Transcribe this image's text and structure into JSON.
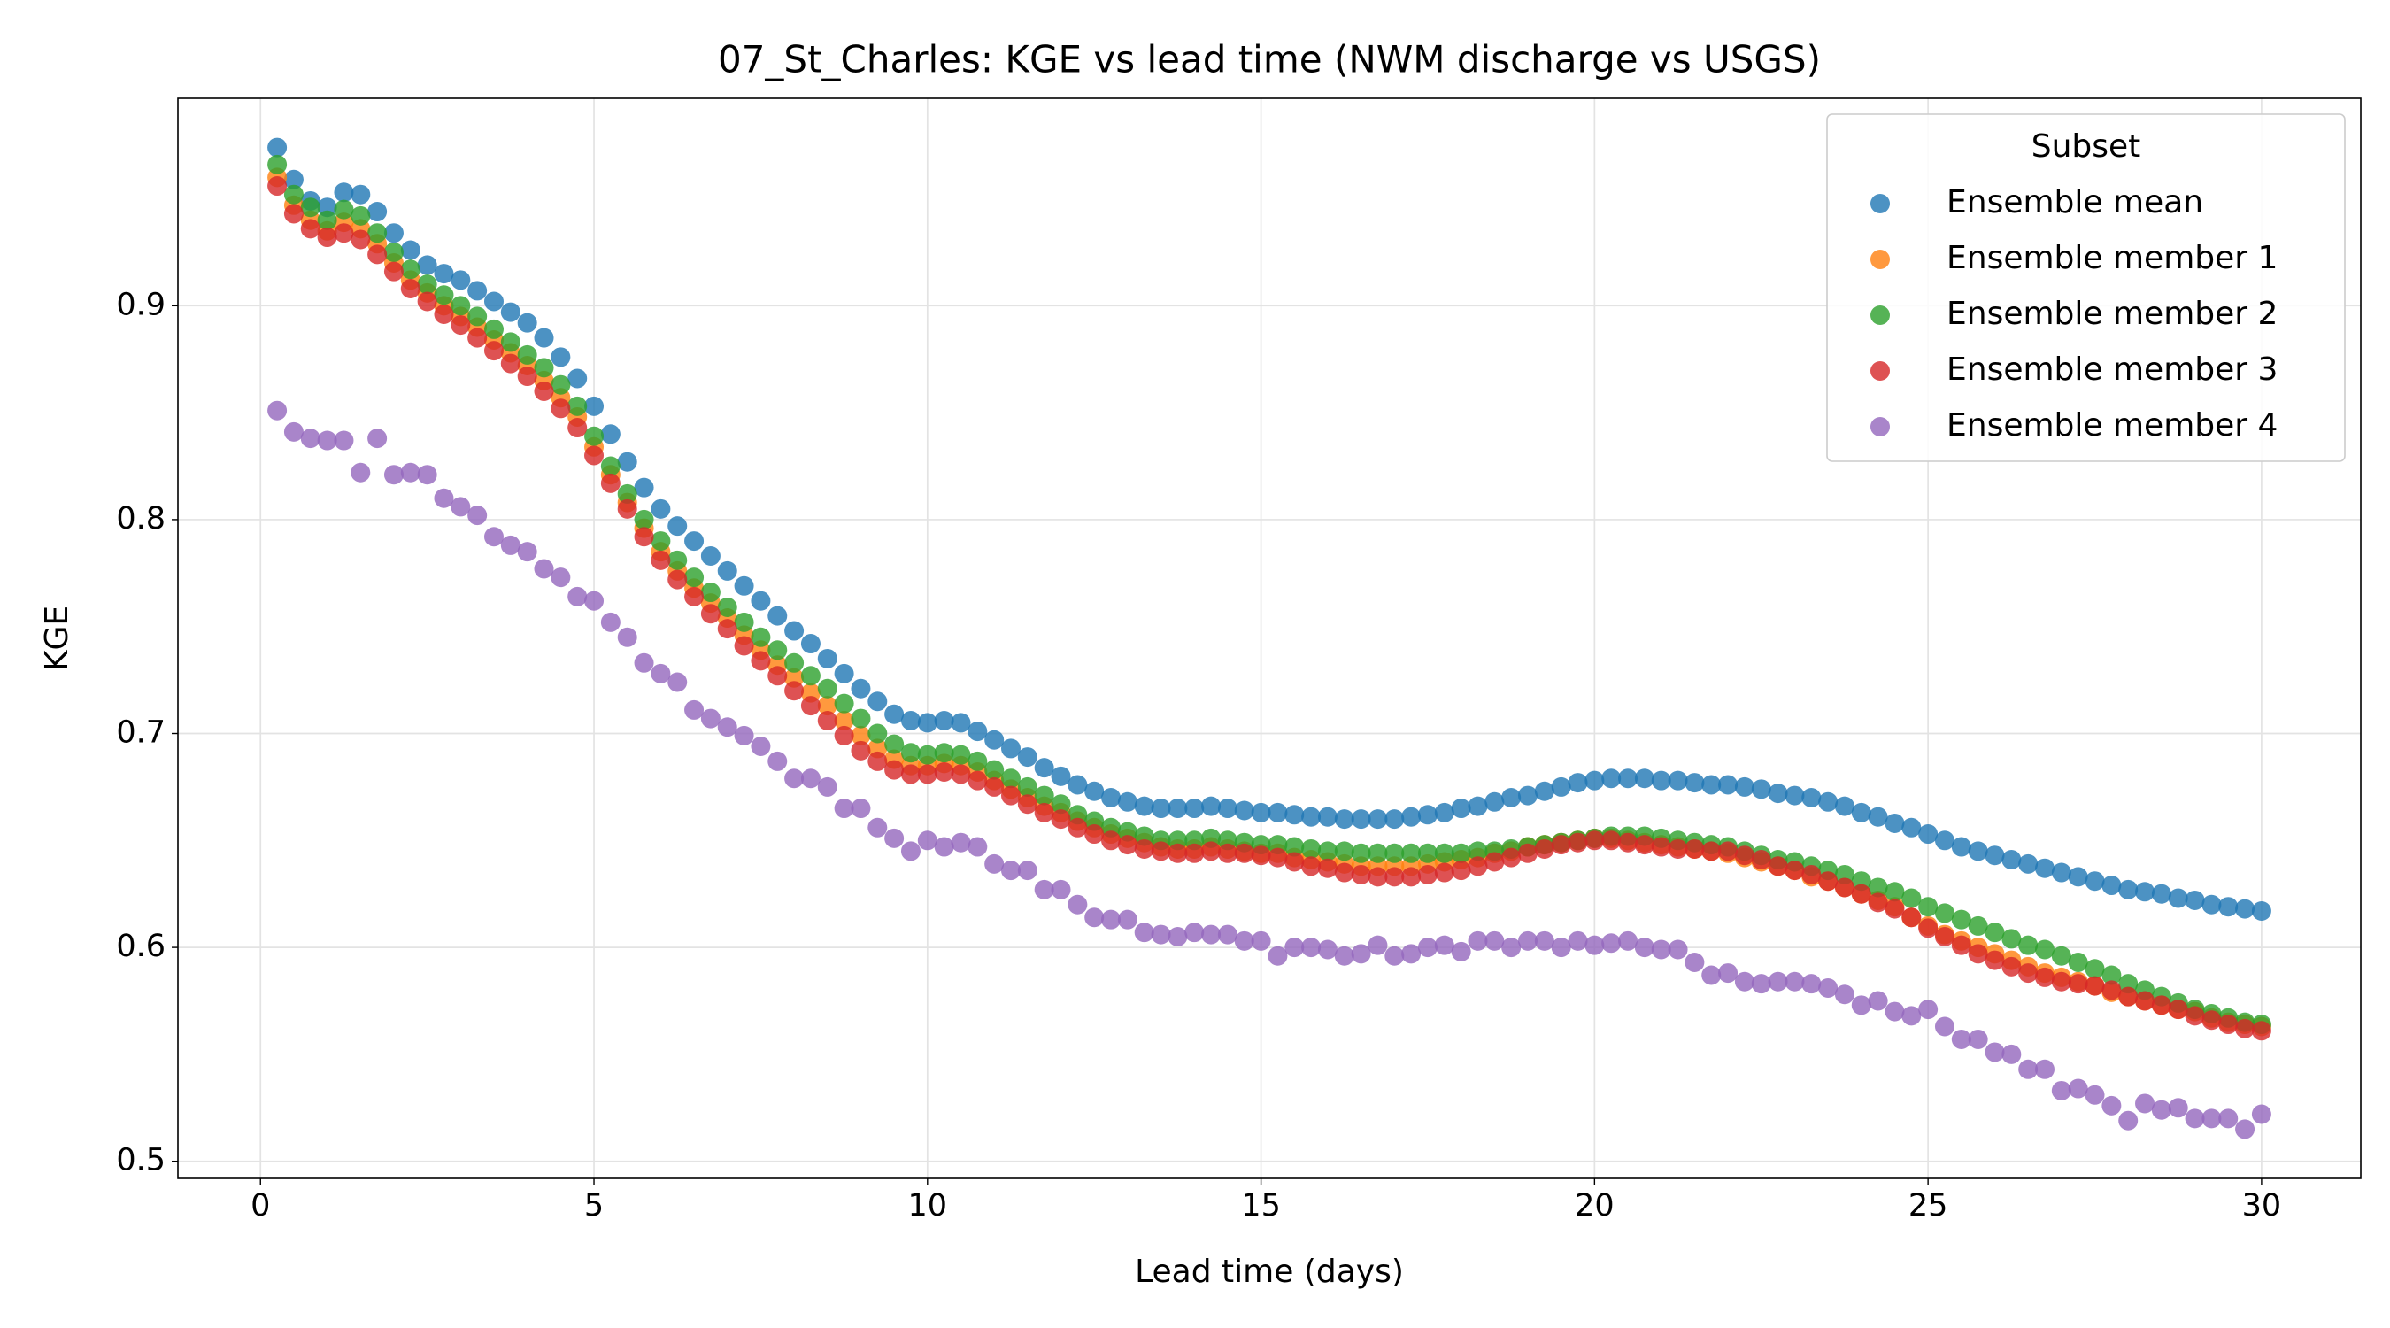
{
  "chart_data": {
    "type": "scatter",
    "title": "07_St_Charles: KGE vs lead time (NWM discharge vs USGS)",
    "x_label": "Lead time (days)",
    "y_label": "KGE",
    "legend_title": "Subset",
    "legend_position": "upper right",
    "grid": true,
    "xlim": [
      -1.2375,
      31.4875
    ],
    "ylim": [
      0.492,
      0.997
    ],
    "xticks": [
      0,
      5,
      10,
      15,
      20,
      25,
      30
    ],
    "yticks": [
      0.5,
      0.6,
      0.7,
      0.8,
      0.9
    ],
    "x": [
      0.25,
      0.5,
      0.75,
      1.0,
      1.25,
      1.5,
      1.75,
      2.0,
      2.25,
      2.5,
      2.75,
      3.0,
      3.25,
      3.5,
      3.75,
      4.0,
      4.25,
      4.5,
      4.75,
      5.0,
      5.25,
      5.5,
      5.75,
      6.0,
      6.25,
      6.5,
      6.75,
      7.0,
      7.25,
      7.5,
      7.75,
      8.0,
      8.25,
      8.5,
      8.75,
      9.0,
      9.25,
      9.5,
      9.75,
      10.0,
      10.25,
      10.5,
      10.75,
      11.0,
      11.25,
      11.5,
      11.75,
      12.0,
      12.25,
      12.5,
      12.75,
      13.0,
      13.25,
      13.5,
      13.75,
      14.0,
      14.25,
      14.5,
      14.75,
      15.0,
      15.25,
      15.5,
      15.75,
      16.0,
      16.25,
      16.5,
      16.75,
      17.0,
      17.25,
      17.5,
      17.75,
      18.0,
      18.25,
      18.5,
      18.75,
      19.0,
      19.25,
      19.5,
      19.75,
      20.0,
      20.25,
      20.5,
      20.75,
      21.0,
      21.25,
      21.5,
      21.75,
      22.0,
      22.25,
      22.5,
      22.75,
      23.0,
      23.25,
      23.5,
      23.75,
      24.0,
      24.25,
      24.5,
      24.75,
      25.0,
      25.25,
      25.5,
      25.75,
      26.0,
      26.25,
      26.5,
      26.75,
      27.0,
      27.25,
      27.5,
      27.75,
      28.0,
      28.25,
      28.5,
      28.75,
      29.0,
      29.25,
      29.5,
      29.75,
      30.0
    ],
    "series": [
      {
        "name": "Ensemble mean",
        "color": "#1f77b4",
        "values": [
          0.974,
          0.959,
          0.949,
          0.946,
          0.953,
          0.952,
          0.944,
          0.934,
          0.926,
          0.919,
          0.915,
          0.912,
          0.907,
          0.902,
          0.897,
          0.892,
          0.885,
          0.876,
          0.866,
          0.853,
          0.84,
          0.827,
          0.815,
          0.805,
          0.797,
          0.79,
          0.783,
          0.776,
          0.769,
          0.762,
          0.755,
          0.748,
          0.742,
          0.735,
          0.728,
          0.721,
          0.715,
          0.709,
          0.706,
          0.705,
          0.706,
          0.705,
          0.701,
          0.697,
          0.693,
          0.689,
          0.684,
          0.68,
          0.676,
          0.673,
          0.67,
          0.668,
          0.666,
          0.665,
          0.665,
          0.665,
          0.666,
          0.665,
          0.664,
          0.663,
          0.663,
          0.662,
          0.661,
          0.661,
          0.66,
          0.66,
          0.66,
          0.66,
          0.661,
          0.662,
          0.663,
          0.665,
          0.666,
          0.668,
          0.67,
          0.671,
          0.673,
          0.675,
          0.677,
          0.678,
          0.679,
          0.679,
          0.679,
          0.678,
          0.678,
          0.677,
          0.676,
          0.676,
          0.675,
          0.674,
          0.672,
          0.671,
          0.67,
          0.668,
          0.666,
          0.663,
          0.661,
          0.658,
          0.656,
          0.653,
          0.65,
          0.647,
          0.645,
          0.643,
          0.641,
          0.639,
          0.637,
          0.635,
          0.633,
          0.631,
          0.629,
          0.627,
          0.626,
          0.625,
          0.623,
          0.622,
          0.62,
          0.619,
          0.618,
          0.617
        ]
      },
      {
        "name": "Ensemble member 1",
        "color": "#ff7f0e",
        "values": [
          0.96,
          0.947,
          0.94,
          0.935,
          0.939,
          0.936,
          0.929,
          0.92,
          0.912,
          0.906,
          0.9,
          0.895,
          0.89,
          0.884,
          0.878,
          0.872,
          0.865,
          0.857,
          0.848,
          0.834,
          0.821,
          0.808,
          0.796,
          0.785,
          0.776,
          0.768,
          0.761,
          0.754,
          0.746,
          0.739,
          0.732,
          0.726,
          0.719,
          0.713,
          0.706,
          0.699,
          0.693,
          0.688,
          0.685,
          0.685,
          0.686,
          0.685,
          0.682,
          0.678,
          0.674,
          0.67,
          0.666,
          0.663,
          0.659,
          0.656,
          0.653,
          0.651,
          0.649,
          0.647,
          0.646,
          0.646,
          0.647,
          0.646,
          0.645,
          0.644,
          0.644,
          0.642,
          0.641,
          0.64,
          0.639,
          0.638,
          0.638,
          0.638,
          0.638,
          0.639,
          0.64,
          0.641,
          0.642,
          0.644,
          0.645,
          0.647,
          0.648,
          0.649,
          0.65,
          0.651,
          0.651,
          0.65,
          0.649,
          0.648,
          0.647,
          0.646,
          0.645,
          0.644,
          0.642,
          0.64,
          0.638,
          0.636,
          0.633,
          0.631,
          0.628,
          0.625,
          0.622,
          0.619,
          0.614,
          0.61,
          0.606,
          0.603,
          0.6,
          0.597,
          0.594,
          0.591,
          0.588,
          0.586,
          0.584,
          0.582,
          0.579,
          0.577,
          0.575,
          0.573,
          0.571,
          0.57,
          0.567,
          0.565,
          0.564,
          0.563
        ]
      },
      {
        "name": "Ensemble member 2",
        "color": "#2ca02c",
        "values": [
          0.966,
          0.952,
          0.946,
          0.94,
          0.945,
          0.942,
          0.934,
          0.925,
          0.917,
          0.91,
          0.905,
          0.9,
          0.895,
          0.889,
          0.883,
          0.877,
          0.871,
          0.863,
          0.853,
          0.839,
          0.825,
          0.812,
          0.8,
          0.79,
          0.781,
          0.773,
          0.766,
          0.759,
          0.752,
          0.745,
          0.739,
          0.733,
          0.727,
          0.721,
          0.714,
          0.707,
          0.7,
          0.695,
          0.691,
          0.69,
          0.691,
          0.69,
          0.687,
          0.683,
          0.679,
          0.675,
          0.671,
          0.667,
          0.662,
          0.659,
          0.656,
          0.654,
          0.652,
          0.65,
          0.65,
          0.65,
          0.651,
          0.65,
          0.649,
          0.648,
          0.648,
          0.647,
          0.646,
          0.645,
          0.645,
          0.644,
          0.644,
          0.644,
          0.644,
          0.644,
          0.644,
          0.644,
          0.645,
          0.645,
          0.646,
          0.647,
          0.648,
          0.649,
          0.65,
          0.651,
          0.652,
          0.652,
          0.652,
          0.651,
          0.65,
          0.649,
          0.648,
          0.647,
          0.645,
          0.643,
          0.641,
          0.64,
          0.638,
          0.636,
          0.634,
          0.631,
          0.628,
          0.626,
          0.623,
          0.619,
          0.616,
          0.613,
          0.61,
          0.607,
          0.604,
          0.601,
          0.599,
          0.596,
          0.593,
          0.59,
          0.587,
          0.583,
          0.58,
          0.577,
          0.574,
          0.571,
          0.569,
          0.567,
          0.565,
          0.564
        ]
      },
      {
        "name": "Ensemble member 3",
        "color": "#d62728",
        "values": [
          0.956,
          0.943,
          0.936,
          0.932,
          0.934,
          0.931,
          0.924,
          0.916,
          0.908,
          0.902,
          0.896,
          0.891,
          0.885,
          0.879,
          0.873,
          0.867,
          0.86,
          0.852,
          0.843,
          0.83,
          0.817,
          0.805,
          0.792,
          0.781,
          0.772,
          0.764,
          0.756,
          0.749,
          0.741,
          0.734,
          0.727,
          0.72,
          0.713,
          0.706,
          0.699,
          0.692,
          0.687,
          0.683,
          0.681,
          0.681,
          0.682,
          0.681,
          0.678,
          0.675,
          0.671,
          0.667,
          0.663,
          0.66,
          0.656,
          0.653,
          0.65,
          0.648,
          0.646,
          0.645,
          0.644,
          0.644,
          0.645,
          0.644,
          0.644,
          0.643,
          0.642,
          0.64,
          0.638,
          0.637,
          0.635,
          0.634,
          0.633,
          0.633,
          0.633,
          0.634,
          0.635,
          0.636,
          0.638,
          0.64,
          0.642,
          0.644,
          0.646,
          0.648,
          0.649,
          0.65,
          0.65,
          0.649,
          0.648,
          0.647,
          0.646,
          0.646,
          0.645,
          0.645,
          0.643,
          0.641,
          0.638,
          0.636,
          0.634,
          0.631,
          0.628,
          0.625,
          0.621,
          0.618,
          0.614,
          0.609,
          0.605,
          0.601,
          0.597,
          0.594,
          0.591,
          0.588,
          0.586,
          0.584,
          0.583,
          0.582,
          0.58,
          0.577,
          0.575,
          0.573,
          0.571,
          0.568,
          0.566,
          0.564,
          0.562,
          0.561
        ]
      },
      {
        "name": "Ensemble member 4",
        "color": "#9467bd",
        "values": [
          0.851,
          0.841,
          0.838,
          0.837,
          0.837,
          0.822,
          0.838,
          0.821,
          0.822,
          0.821,
          0.81,
          0.806,
          0.802,
          0.792,
          0.788,
          0.785,
          0.777,
          0.773,
          0.764,
          0.762,
          0.752,
          0.745,
          0.733,
          0.728,
          0.724,
          0.711,
          0.707,
          0.703,
          0.699,
          0.694,
          0.687,
          0.679,
          0.679,
          0.675,
          0.665,
          0.665,
          0.656,
          0.651,
          0.645,
          0.65,
          0.647,
          0.649,
          0.647,
          0.639,
          0.636,
          0.636,
          0.627,
          0.627,
          0.62,
          0.614,
          0.613,
          0.613,
          0.607,
          0.606,
          0.605,
          0.607,
          0.606,
          0.606,
          0.603,
          0.603,
          0.596,
          0.6,
          0.6,
          0.599,
          0.596,
          0.597,
          0.601,
          0.596,
          0.597,
          0.6,
          0.601,
          0.598,
          0.603,
          0.603,
          0.6,
          0.603,
          0.603,
          0.6,
          0.603,
          0.601,
          0.602,
          0.603,
          0.6,
          0.599,
          0.599,
          0.593,
          0.587,
          0.588,
          0.584,
          0.583,
          0.584,
          0.584,
          0.583,
          0.581,
          0.578,
          0.573,
          0.575,
          0.57,
          0.568,
          0.571,
          0.563,
          0.557,
          0.557,
          0.551,
          0.55,
          0.543,
          0.543,
          0.533,
          0.534,
          0.531,
          0.526,
          0.519,
          0.527,
          0.524,
          0.525,
          0.52,
          0.52,
          0.52,
          0.515,
          0.522
        ]
      }
    ]
  }
}
